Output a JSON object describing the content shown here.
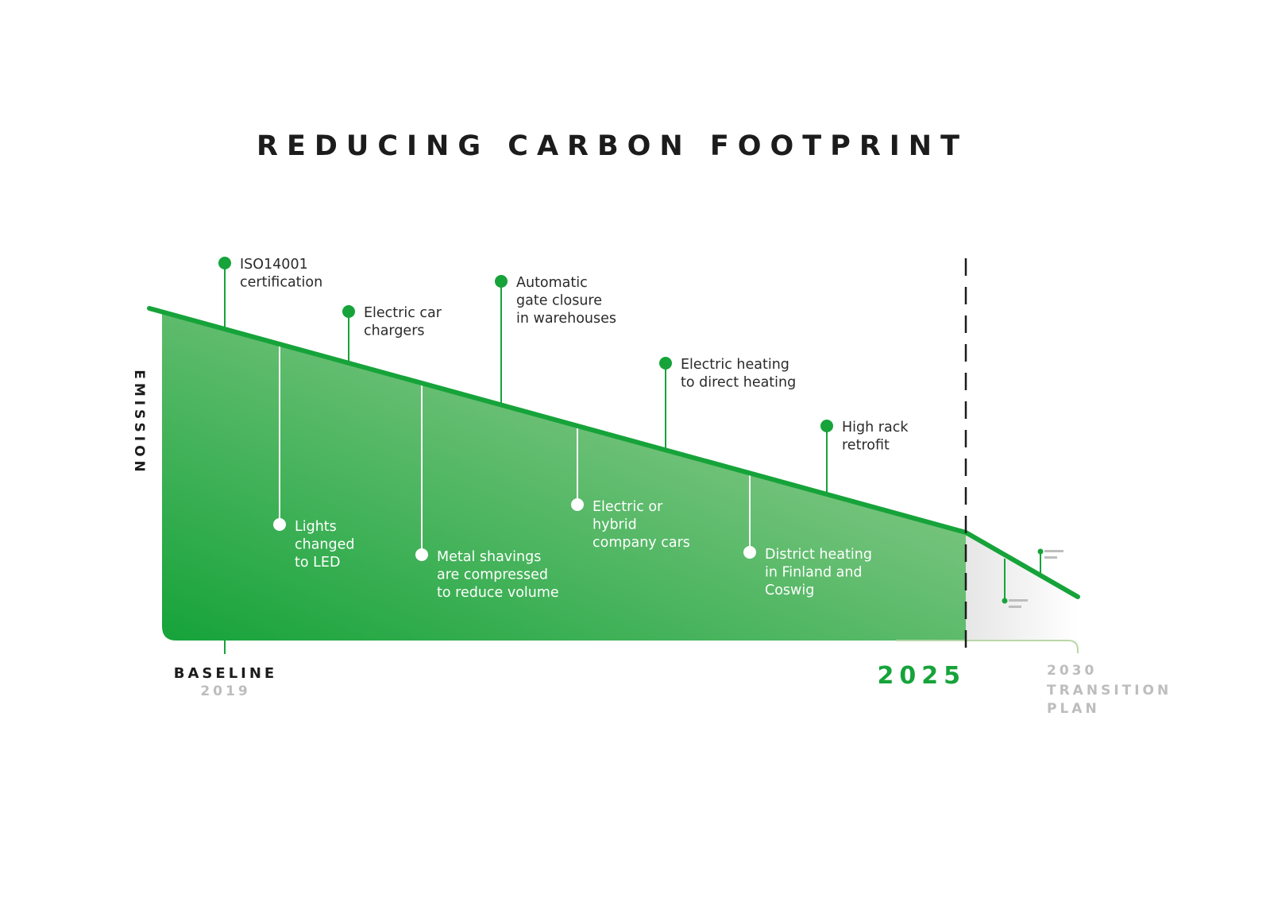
{
  "title": "REDUCING CARBON FOOTPRINT",
  "y_axis_label": "EMISSION",
  "colors": {
    "accent": "#16a33a",
    "fill_light": "#8fcc8a",
    "future_grey": "#bdbdbd",
    "text": "#2a2a2a"
  },
  "milestones_above": [
    {
      "lines": [
        "ISO14001",
        "certification"
      ]
    },
    {
      "lines": [
        "Electric car",
        "chargers"
      ]
    },
    {
      "lines": [
        "Automatic",
        "gate closure",
        "in warehouses"
      ]
    },
    {
      "lines": [
        "Electric heating",
        "to direct heating"
      ]
    },
    {
      "lines": [
        "High rack",
        "retrofit"
      ]
    }
  ],
  "milestones_below": [
    {
      "lines": [
        "Lights",
        "changed",
        "to LED"
      ]
    },
    {
      "lines": [
        "Metal shavings",
        "are compressed",
        "to reduce volume"
      ]
    },
    {
      "lines": [
        "Electric or",
        "hybrid",
        "company cars"
      ]
    },
    {
      "lines": [
        "District heating",
        "in Finland and",
        "Coswig"
      ]
    }
  ],
  "x_labels": {
    "baseline": "BASELINE",
    "baseline_year": "2019",
    "current": "2025",
    "future_year": "2030",
    "future_line1": "TRANSITION",
    "future_line2": "PLAN"
  }
}
